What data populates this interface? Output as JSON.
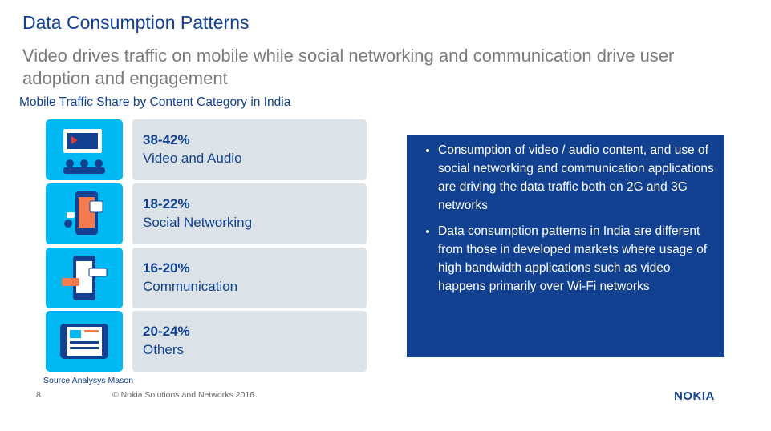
{
  "header": {
    "title": "Data Consumption Patterns",
    "subtitle": "Video drives traffic on mobile while social networking and communication drive user adoption and engagement"
  },
  "section": {
    "title": "Mobile Traffic Share by Content Category in India",
    "rows": [
      {
        "share": "38-42%",
        "label": "Video and Audio"
      },
      {
        "share": "18-22%",
        "label": "Social Networking"
      },
      {
        "share": "16-20%",
        "label": "Communication"
      },
      {
        "share": "20-24%",
        "label": "Others"
      }
    ],
    "source": "Source Analysys Mason"
  },
  "panel": {
    "bullets": [
      "Consumption of video / audio content, and use of social networking and communication applications are driving the data traffic both on 2G and 3G networks",
      "Data consumption patterns in India are different from those in developed markets where usage of high bandwidth applications such as video happens primarily over Wi-Fi networks"
    ]
  },
  "footer": {
    "page": "8",
    "copyright": "© Nokia Solutions and Networks 2016",
    "logo": "NOKIA"
  }
}
